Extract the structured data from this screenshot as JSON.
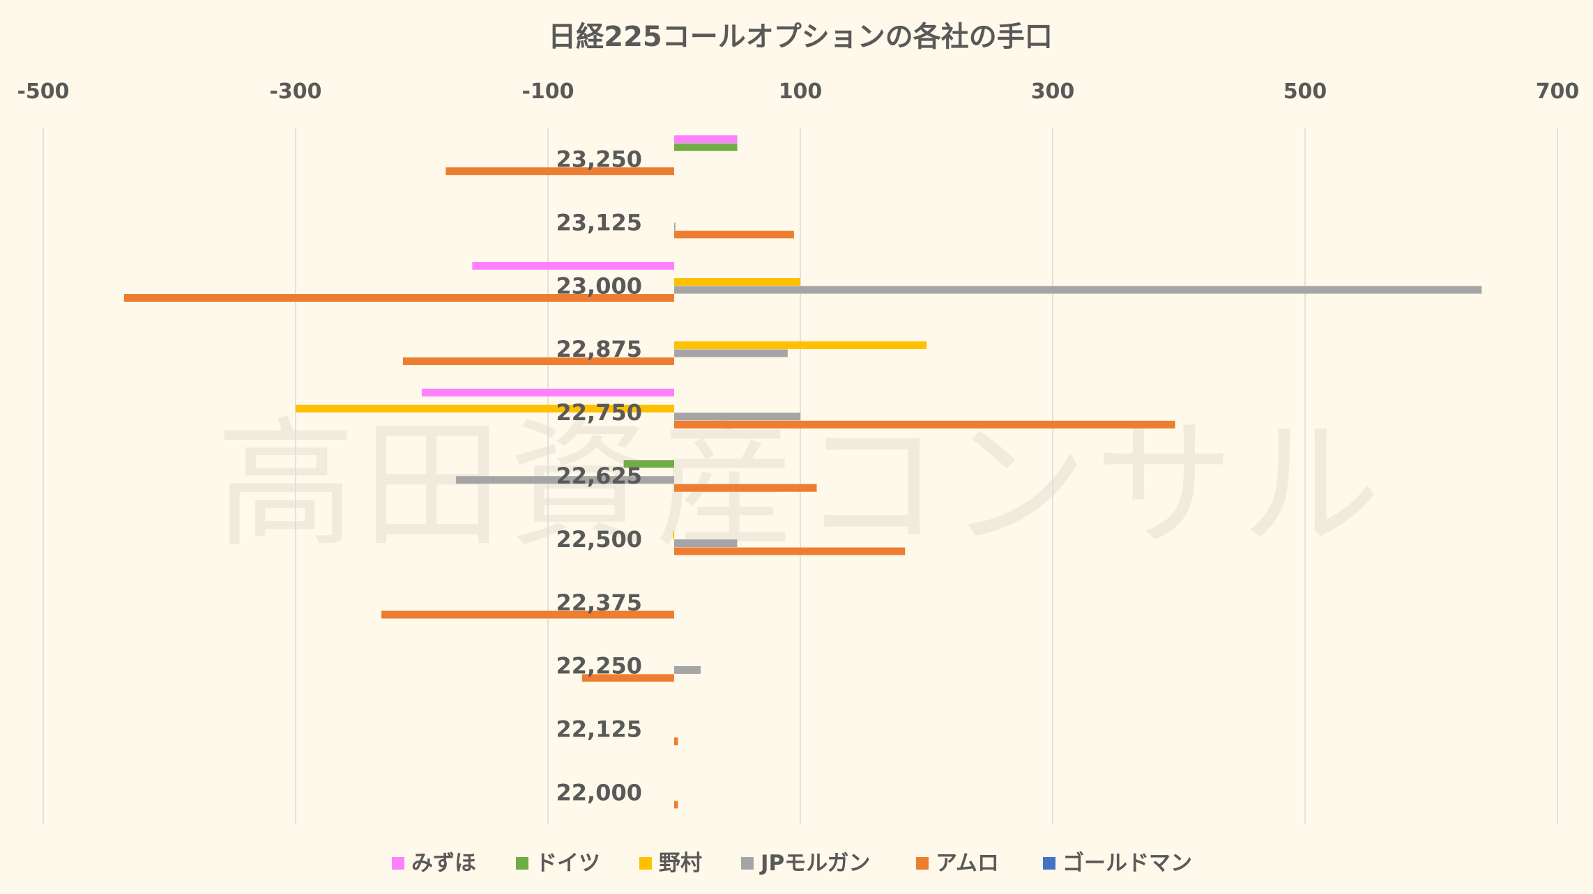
{
  "watermark": "高田資産コンサル",
  "chart_data": {
    "type": "bar",
    "orientation": "horizontal",
    "title": "日経225コールオプションの各社の手口",
    "categories": [
      "23,250",
      "23,125",
      "23,000",
      "22,875",
      "22,750",
      "22,625",
      "22,500",
      "22,375",
      "22,250",
      "22,125",
      "22,000"
    ],
    "xlim": [
      -500,
      700
    ],
    "ticks": [
      -500,
      -300,
      -100,
      100,
      300,
      500,
      700
    ],
    "tick_labels": [
      "-500",
      "-300",
      "-100",
      "100",
      "300",
      "500",
      "700"
    ],
    "grid": true,
    "legend_position": "bottom",
    "series": [
      {
        "name": "みずほ",
        "color": "#ff80ff",
        "values": [
          50,
          0,
          -160,
          0,
          -200,
          0,
          0,
          0,
          0,
          0,
          0
        ]
      },
      {
        "name": "ドイツ",
        "color": "#70ad47",
        "values": [
          50,
          0,
          0,
          0,
          0,
          -40,
          0,
          0,
          0,
          0,
          0
        ]
      },
      {
        "name": "野村",
        "color": "#ffc000",
        "values": [
          0,
          0,
          100,
          200,
          -300,
          0,
          -1,
          0,
          0,
          0,
          0
        ]
      },
      {
        "name": "JPモルガン",
        "color": "#a5a5a5",
        "values": [
          0,
          1,
          640,
          90,
          100,
          -173,
          50,
          0,
          21,
          0,
          0
        ]
      },
      {
        "name": "アムロ",
        "color": "#ed7d31",
        "values": [
          -181,
          95,
          -436,
          -215,
          397,
          113,
          183,
          -232,
          -73,
          3,
          3
        ]
      },
      {
        "name": "ゴールドマン",
        "color": "#4472c4",
        "values": [
          0,
          0,
          0,
          0,
          0,
          0,
          0,
          0,
          0,
          0,
          0
        ]
      }
    ]
  }
}
